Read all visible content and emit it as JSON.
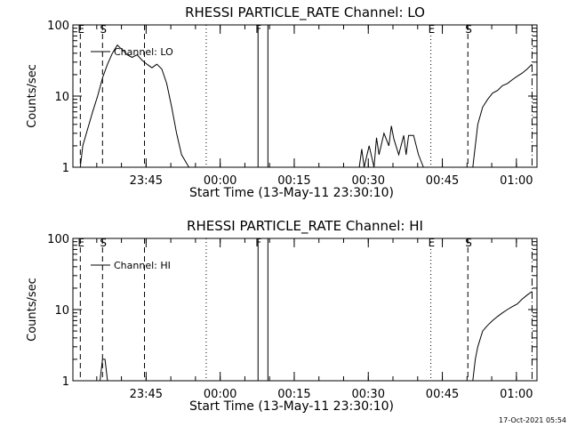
{
  "footer": {
    "timestamp": "17-Oct-2021 05:54"
  },
  "chart_data": [
    {
      "type": "line",
      "title": "RHESSI PARTICLE_RATE Channel: LO",
      "xlabel": "Start Time (13-May-11 23:30:10)",
      "ylabel": "Counts/sec",
      "yscale": "log",
      "ylim": [
        1,
        100
      ],
      "xlim_minutes_after_start": [
        0,
        94
      ],
      "x_tick_labels": [
        "23:45",
        "00:00",
        "00:15",
        "00:30",
        "00:45",
        "01:00"
      ],
      "y_tick_labels": [
        "1",
        "10",
        "100"
      ],
      "legend": "Channel: LO",
      "series": [
        {
          "name": "Channel: LO",
          "x": [
            1.5,
            2,
            3,
            4,
            5,
            6,
            7,
            8,
            9,
            9.5,
            10,
            11,
            12,
            13,
            14,
            15,
            16,
            17,
            18,
            19,
            20,
            21,
            22,
            23.5,
            null,
            58,
            58.5,
            59,
            60,
            61,
            61.5,
            62,
            63,
            64,
            64.5,
            65,
            66,
            67,
            67.5,
            68,
            69,
            70,
            71,
            null,
            81,
            81.5,
            82,
            83,
            84,
            85,
            86,
            87,
            88,
            89,
            90,
            91,
            92,
            93
          ],
          "y": [
            1,
            2,
            3.5,
            6,
            10,
            18,
            28,
            40,
            52,
            48,
            45,
            38,
            35,
            38,
            32,
            28,
            25,
            28,
            24,
            15,
            7,
            3,
            1.5,
            1,
            null,
            1,
            1.8,
            1,
            2,
            1,
            2.6,
            1.5,
            3,
            2,
            3.8,
            2.5,
            1.5,
            2.8,
            1.5,
            2.8,
            2.8,
            1.5,
            1,
            null,
            1,
            2,
            4,
            7,
            9,
            11,
            12,
            14,
            15,
            17,
            19,
            21,
            24,
            28
          ]
        }
      ],
      "annotations": [
        {
          "label": "E",
          "x_min": 1.5,
          "style": "dashed"
        },
        {
          "label": "S",
          "x_min": 6,
          "style": "dashed"
        },
        {
          "label": "",
          "x_min": 14.5,
          "style": "dashed"
        },
        {
          "label": "",
          "x_min": 27,
          "style": "dotted"
        },
        {
          "label": "F",
          "x_min": 37.5,
          "style": "solid"
        },
        {
          "label": "",
          "x_min": 39.5,
          "style": "solid"
        },
        {
          "label": "E",
          "x_min": 72.5,
          "style": "dotted"
        },
        {
          "label": "S",
          "x_min": 80,
          "style": "dashed"
        },
        {
          "label": "",
          "x_min": 93,
          "style": "dashdot"
        }
      ]
    },
    {
      "type": "line",
      "title": "RHESSI PARTICLE_RATE Channel: HI",
      "xlabel": "Start Time (13-May-11 23:30:10)",
      "ylabel": "Counts/sec",
      "yscale": "log",
      "ylim": [
        1,
        100
      ],
      "xlim_minutes_after_start": [
        0,
        94
      ],
      "x_tick_labels": [
        "23:45",
        "00:00",
        "00:15",
        "00:30",
        "00:45",
        "01:00"
      ],
      "y_tick_labels": [
        "1",
        "10",
        "100"
      ],
      "legend": "Channel: HI",
      "series": [
        {
          "name": "Channel: HI",
          "x": [
            5.5,
            6,
            6.5,
            7,
            null,
            81,
            81.5,
            82,
            83,
            84,
            85,
            86,
            87,
            88,
            89,
            90,
            91,
            92,
            93
          ],
          "y": [
            1,
            2,
            2,
            1,
            null,
            1,
            2,
            3,
            5,
            6,
            7,
            8,
            9,
            10,
            11,
            12,
            14,
            16,
            18
          ]
        }
      ],
      "annotations": [
        {
          "label": "E",
          "x_min": 1.5,
          "style": "dashed"
        },
        {
          "label": "S",
          "x_min": 6,
          "style": "dashed"
        },
        {
          "label": "",
          "x_min": 14.5,
          "style": "dashed"
        },
        {
          "label": "",
          "x_min": 27,
          "style": "dotted"
        },
        {
          "label": "F",
          "x_min": 37.5,
          "style": "solid"
        },
        {
          "label": "",
          "x_min": 39.5,
          "style": "solid"
        },
        {
          "label": "E",
          "x_min": 72.5,
          "style": "dotted"
        },
        {
          "label": "S",
          "x_min": 80,
          "style": "dashed"
        },
        {
          "label": "",
          "x_min": 93,
          "style": "dashdot"
        }
      ]
    }
  ]
}
